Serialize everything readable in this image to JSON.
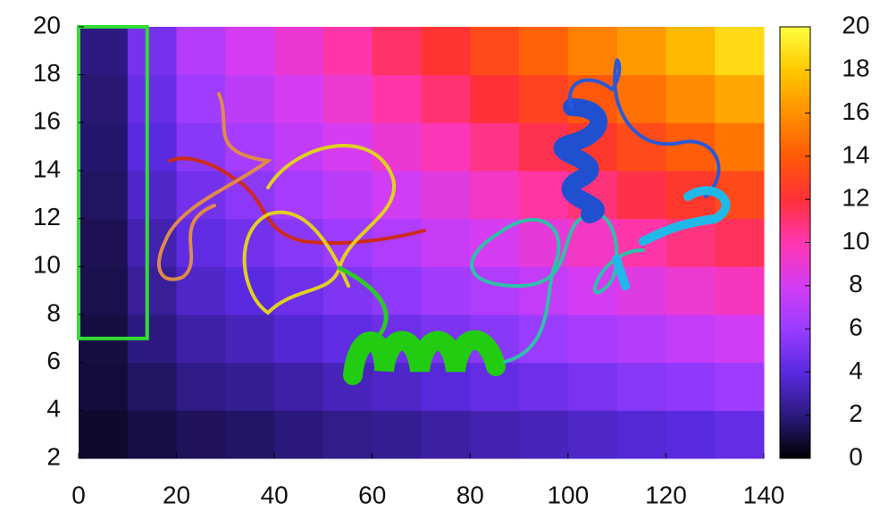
{
  "chart_data": {
    "type": "heatmap",
    "xbins": [
      0,
      10,
      20,
      30,
      40,
      50,
      60,
      70,
      80,
      90,
      100,
      110,
      120,
      130,
      140
    ],
    "ybins": [
      2,
      4,
      6,
      8,
      10,
      12,
      14,
      16,
      18,
      20
    ],
    "z": [
      [
        0.7,
        1.1,
        1.4,
        1.6,
        1.9,
        2.2,
        2.4,
        2.7,
        3.0,
        3.2,
        3.5,
        3.8,
        4.0,
        4.3
      ],
      [
        0.9,
        1.5,
        2.1,
        2.4,
        2.8,
        3.2,
        3.5,
        3.9,
        4.3,
        4.6,
        5.0,
        5.4,
        5.7,
        6.1
      ],
      [
        1.0,
        2.0,
        2.8,
        3.2,
        3.7,
        4.2,
        4.6,
        5.1,
        5.5,
        6.0,
        6.5,
        6.9,
        7.4,
        7.9
      ],
      [
        1.2,
        2.5,
        3.5,
        4.0,
        4.6,
        5.2,
        5.7,
        6.3,
        6.8,
        7.4,
        8.0,
        8.5,
        9.1,
        9.6
      ],
      [
        1.3,
        3.0,
        4.2,
        4.8,
        5.5,
        6.1,
        6.8,
        7.5,
        8.1,
        8.8,
        9.4,
        10.1,
        10.8,
        11.4
      ],
      [
        1.5,
        3.5,
        4.8,
        5.6,
        6.4,
        7.1,
        7.9,
        8.6,
        9.4,
        10.2,
        10.9,
        11.7,
        12.4,
        13.2
      ],
      [
        1.7,
        4.0,
        5.5,
        6.4,
        7.3,
        8.1,
        9.0,
        9.8,
        10.7,
        11.6,
        12.4,
        13.3,
        14.1,
        15.0
      ],
      [
        1.8,
        4.4,
        6.2,
        7.2,
        8.1,
        9.1,
        10.1,
        11.0,
        12.0,
        12.9,
        13.9,
        14.8,
        15.8,
        16.8
      ],
      [
        2.0,
        4.9,
        6.9,
        8.0,
        9.0,
        10.1,
        11.2,
        12.2,
        13.3,
        14.3,
        15.4,
        16.4,
        17.5,
        18.6
      ]
    ],
    "xlim": [
      0,
      140
    ],
    "xticks": [
      0,
      20,
      40,
      60,
      80,
      100,
      120,
      140
    ],
    "ylim": [
      2,
      20
    ],
    "yticks": [
      2,
      4,
      6,
      8,
      10,
      12,
      14,
      16,
      18,
      20
    ],
    "zlim": [
      0,
      20
    ],
    "zticks": [
      0,
      2,
      4,
      6,
      8,
      10,
      12,
      14,
      16,
      18,
      20
    ],
    "colormap": [
      "#000000",
      "#2c1a80",
      "#5a2ae0",
      "#9a3cff",
      "#d43cf4",
      "#ff36b0",
      "#ff3038",
      "#ff5a08",
      "#ff9000",
      "#ffc800",
      "#ffff40"
    ],
    "highlight": {
      "xlim": [
        0,
        14
      ],
      "ylim": [
        7,
        20
      ],
      "color": "#33dd33"
    }
  }
}
